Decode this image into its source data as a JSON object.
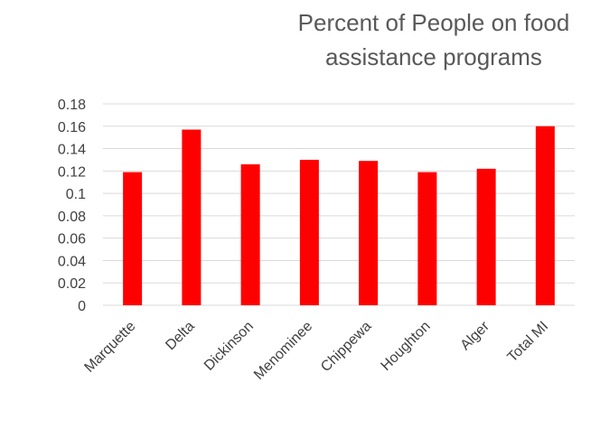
{
  "chart_data": {
    "type": "bar",
    "title": "Percent of People on food assistance programs",
    "xlabel": "",
    "ylabel": "",
    "categories": [
      "Marquette",
      "Delta",
      "Dickinson",
      "Menominee",
      "Chippewa",
      "Houghton",
      "Alger",
      "Total MI"
    ],
    "values": [
      0.119,
      0.157,
      0.126,
      0.13,
      0.129,
      0.119,
      0.122,
      0.16
    ],
    "ylim": [
      0,
      0.18
    ],
    "yticks": [
      0,
      0.02,
      0.04,
      0.06,
      0.08,
      0.1,
      0.12,
      0.14,
      0.16,
      0.18
    ],
    "ytick_labels": [
      "0",
      "0.02",
      "0.04",
      "0.06",
      "0.08",
      "0.1",
      "0.12",
      "0.14",
      "0.16",
      "0.18"
    ],
    "grid": true,
    "legend": "none",
    "colors": {
      "bar": "#ff0000",
      "grid": "#d9d9d9",
      "text": "#595959"
    }
  }
}
